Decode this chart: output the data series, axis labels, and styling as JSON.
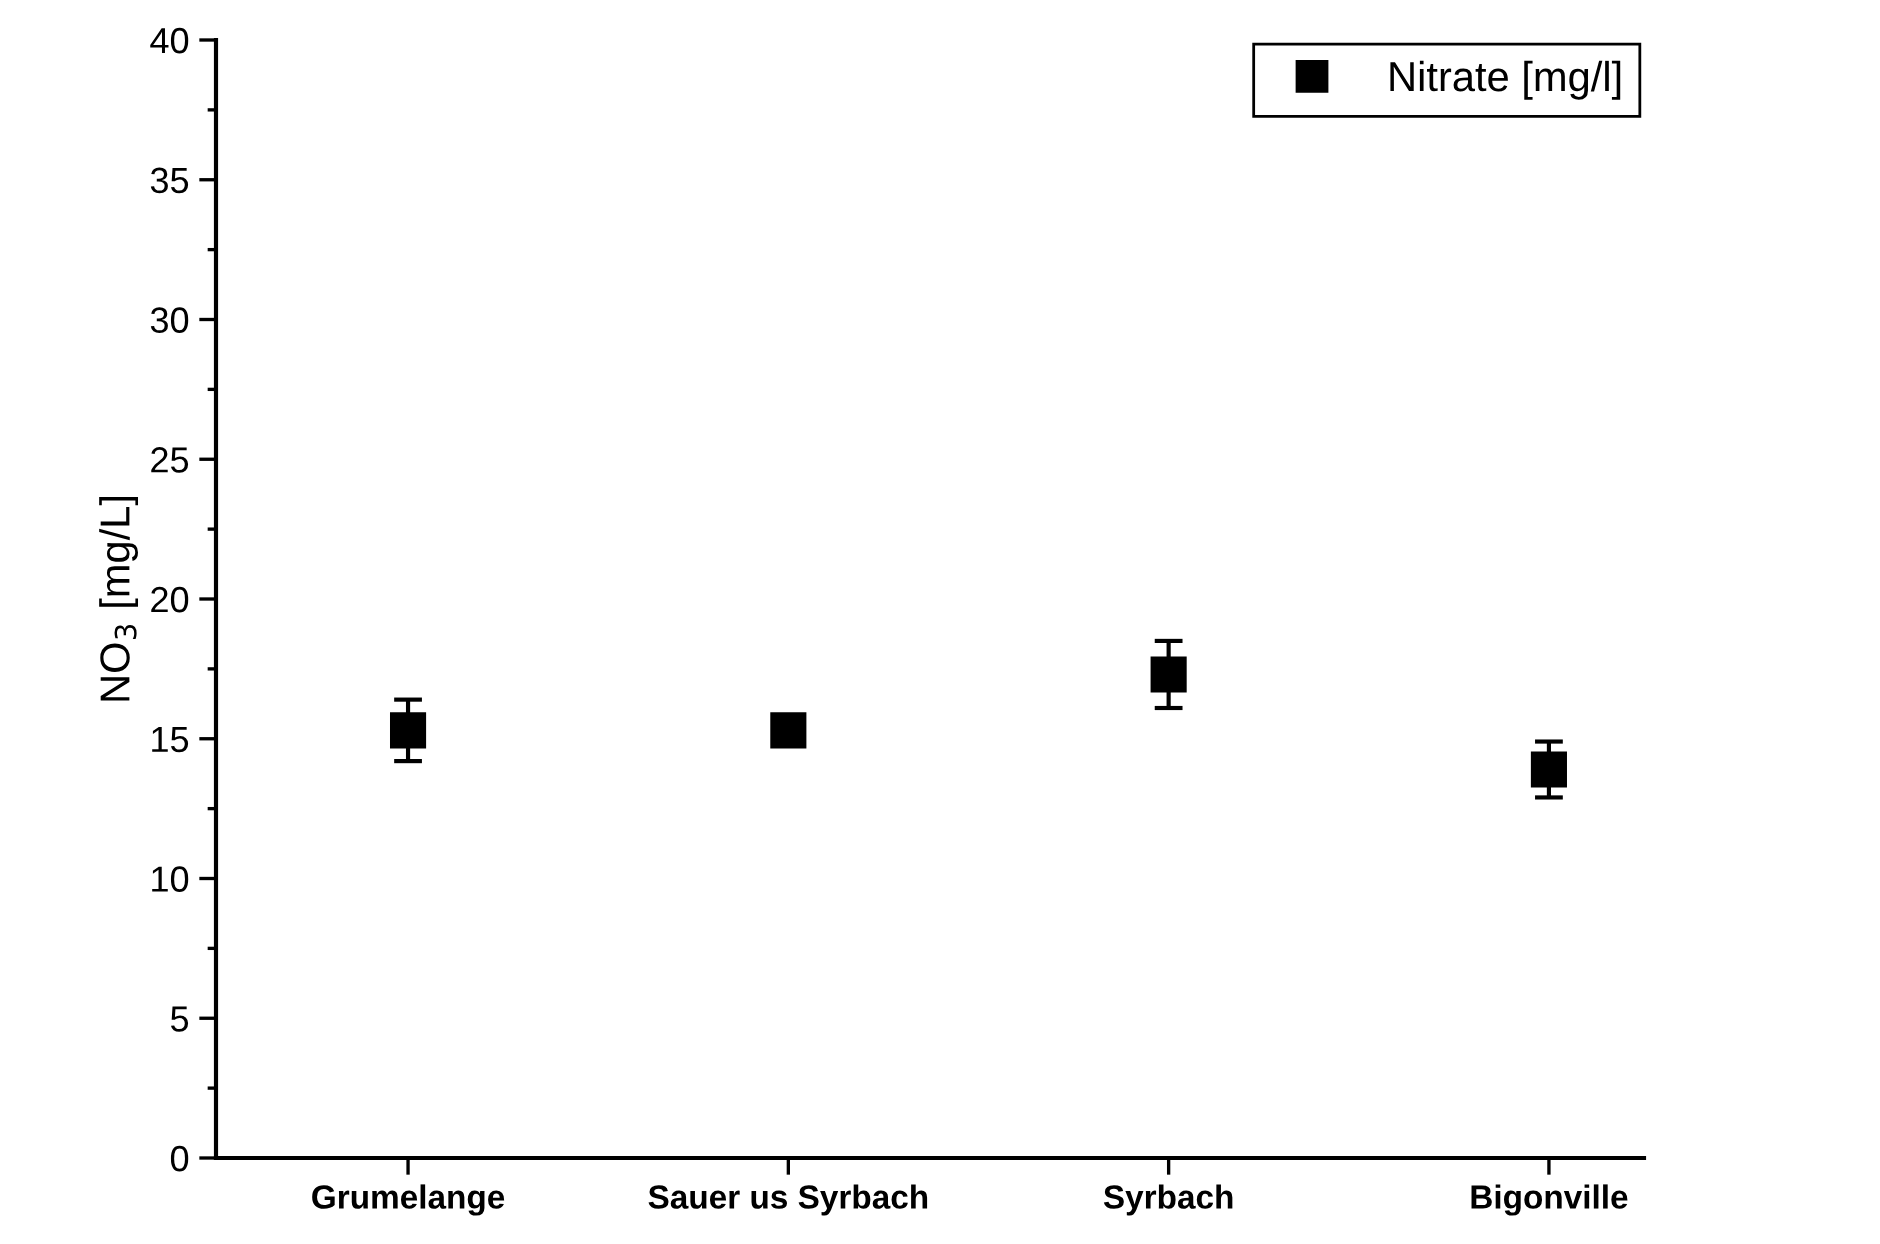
{
  "chart_data": {
    "type": "scatter",
    "ylabel": "NO$_{3}$ [mg/L]",
    "categories": [
      "Grumelange",
      "Sauer us Syrbach",
      "Syrbach",
      "Bigonville"
    ],
    "series": [
      {
        "name": "Nitrate [mg/l]",
        "color": "#000000",
        "values": [
          15.3,
          15.3,
          17.3,
          13.9
        ],
        "errors": [
          1.1,
          0.2,
          1.2,
          1.0
        ]
      }
    ],
    "ylim": [
      0,
      40
    ],
    "yticks": [
      0,
      5,
      10,
      15,
      20,
      25,
      30,
      35,
      40
    ],
    "marker": "square",
    "legend": "top right",
    "grid": false
  }
}
